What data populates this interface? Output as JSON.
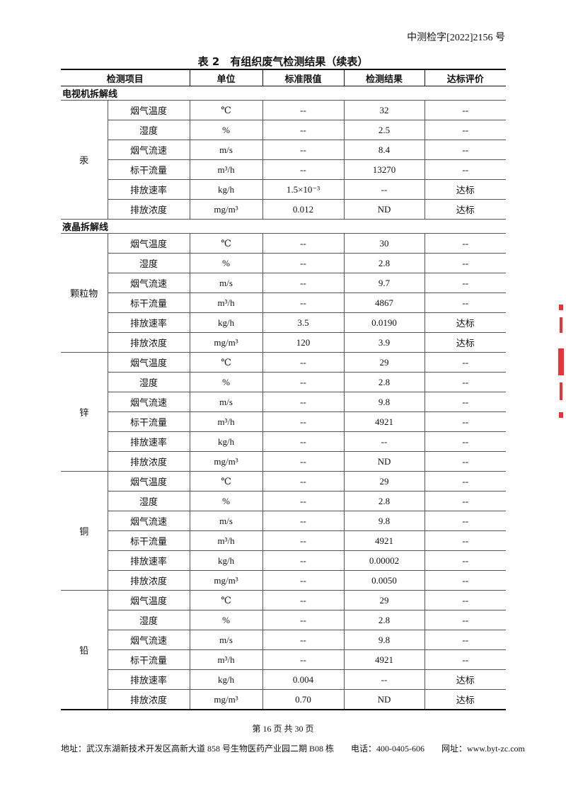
{
  "header": {
    "doc_number": "中测检字[2022]2156 号"
  },
  "table": {
    "title": "表 2　有组织废气检测结果（续表）",
    "columns": [
      "检测项目",
      "单位",
      "标准限值",
      "检测结果",
      "达标评价"
    ],
    "sections": [
      {
        "name": "电视机拆解线",
        "groups": [
          {
            "pollutant": "汞",
            "rows": [
              [
                "烟气温度",
                "℃",
                "--",
                "32",
                "--"
              ],
              [
                "湿度",
                "%",
                "--",
                "2.5",
                "--"
              ],
              [
                "烟气流速",
                "m/s",
                "--",
                "8.4",
                "--"
              ],
              [
                "标干流量",
                "m³/h",
                "--",
                "13270",
                "--"
              ],
              [
                "排放速率",
                "kg/h",
                "1.5×10⁻³",
                "--",
                "达标"
              ],
              [
                "排放浓度",
                "mg/m³",
                "0.012",
                "ND",
                "达标"
              ]
            ]
          }
        ]
      },
      {
        "name": "液晶拆解线",
        "groups": [
          {
            "pollutant": "颗粒物",
            "rows": [
              [
                "烟气温度",
                "℃",
                "--",
                "30",
                "--"
              ],
              [
                "湿度",
                "%",
                "--",
                "2.8",
                "--"
              ],
              [
                "烟气流速",
                "m/s",
                "--",
                "9.7",
                "--"
              ],
              [
                "标干流量",
                "m³/h",
                "--",
                "4867",
                "--"
              ],
              [
                "排放速率",
                "kg/h",
                "3.5",
                "0.0190",
                "达标"
              ],
              [
                "排放浓度",
                "mg/m³",
                "120",
                "3.9",
                "达标"
              ]
            ]
          },
          {
            "pollutant": "锌",
            "rows": [
              [
                "烟气温度",
                "℃",
                "--",
                "29",
                "--"
              ],
              [
                "湿度",
                "%",
                "--",
                "2.8",
                "--"
              ],
              [
                "烟气流速",
                "m/s",
                "--",
                "9.8",
                "--"
              ],
              [
                "标干流量",
                "m³/h",
                "--",
                "4921",
                "--"
              ],
              [
                "排放速率",
                "kg/h",
                "--",
                "--",
                "--"
              ],
              [
                "排放浓度",
                "mg/m³",
                "--",
                "ND",
                "--"
              ]
            ]
          },
          {
            "pollutant": "铜",
            "rows": [
              [
                "烟气温度",
                "℃",
                "--",
                "29",
                "--"
              ],
              [
                "湿度",
                "%",
                "--",
                "2.8",
                "--"
              ],
              [
                "烟气流速",
                "m/s",
                "--",
                "9.8",
                "--"
              ],
              [
                "标干流量",
                "m³/h",
                "--",
                "4921",
                "--"
              ],
              [
                "排放速率",
                "kg/h",
                "--",
                "0.00002",
                "--"
              ],
              [
                "排放浓度",
                "mg/m³",
                "--",
                "0.0050",
                "--"
              ]
            ]
          },
          {
            "pollutant": "铅",
            "rows": [
              [
                "烟气温度",
                "℃",
                "--",
                "29",
                "--"
              ],
              [
                "湿度",
                "%",
                "--",
                "2.8",
                "--"
              ],
              [
                "烟气流速",
                "m/s",
                "--",
                "9.8",
                "--"
              ],
              [
                "标干流量",
                "m³/h",
                "--",
                "4921",
                "--"
              ],
              [
                "排放速率",
                "kg/h",
                "0.004",
                "--",
                "达标"
              ],
              [
                "排放浓度",
                "mg/m³",
                "0.70",
                "ND",
                "达标"
              ]
            ]
          }
        ]
      }
    ]
  },
  "footer": {
    "page_number": "第 16 页 共 30 页",
    "address": "地址：武汉东湖新技术开发区高新大道 858 号生物医药产业园二期 B08 栋　　电话：400-0405-606　　网址：www.byt-zc.com"
  },
  "colors": {
    "stamp": "#e8323c"
  }
}
